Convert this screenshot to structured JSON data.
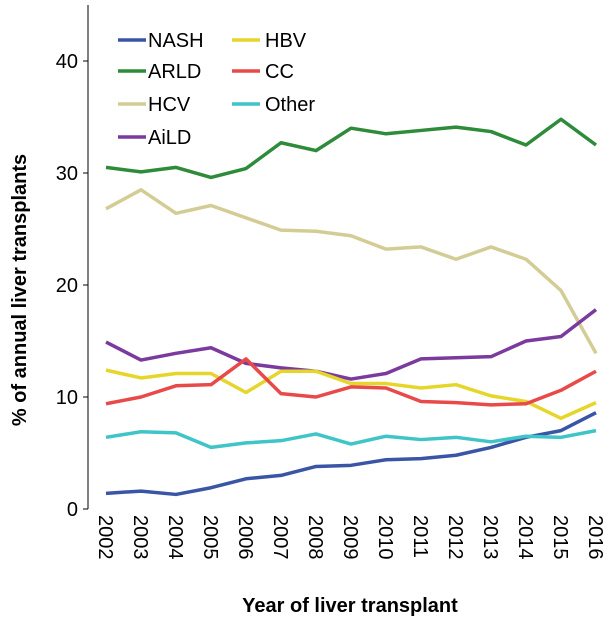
{
  "chart_data": {
    "type": "line",
    "x_label": "Year of liver transplant",
    "y_label": "% of annual liver transplants",
    "categories": [
      "2002",
      "2003",
      "2004",
      "2005",
      "2006",
      "2007",
      "2008",
      "2009",
      "2010",
      "2011",
      "2012",
      "2013",
      "2014",
      "2015",
      "2016"
    ],
    "ylim": [
      0,
      45
    ],
    "yticks": [
      0,
      10,
      20,
      30,
      40
    ],
    "series": [
      {
        "name": "NASH",
        "color": "#3a55a6",
        "values": [
          1.4,
          1.6,
          1.3,
          1.9,
          2.7,
          3.0,
          3.8,
          3.9,
          4.4,
          4.5,
          4.8,
          5.5,
          6.4,
          7.0,
          8.6
        ]
      },
      {
        "name": "ARLD",
        "color": "#2e8b3a",
        "values": [
          30.5,
          30.1,
          30.5,
          29.6,
          30.4,
          32.7,
          32.0,
          34.0,
          33.5,
          33.8,
          34.1,
          33.7,
          32.5,
          34.8,
          32.5
        ]
      },
      {
        "name": "HCV",
        "color": "#d4cc95",
        "values": [
          26.8,
          28.5,
          26.4,
          27.1,
          26.0,
          24.9,
          24.8,
          24.4,
          23.2,
          23.4,
          22.3,
          23.4,
          22.3,
          19.5,
          13.9
        ]
      },
      {
        "name": "AiLD",
        "color": "#7b3a9e",
        "values": [
          14.9,
          13.3,
          13.9,
          14.4,
          13.0,
          12.6,
          12.3,
          11.6,
          12.1,
          13.4,
          13.5,
          13.6,
          15.0,
          15.4,
          17.8
        ]
      },
      {
        "name": "HBV",
        "color": "#e6d62a",
        "values": [
          12.4,
          11.7,
          12.1,
          12.1,
          10.4,
          12.3,
          12.3,
          11.2,
          11.2,
          10.8,
          11.1,
          10.1,
          9.6,
          8.1,
          9.5
        ]
      },
      {
        "name": "CC",
        "color": "#e84a4a",
        "values": [
          9.4,
          10.0,
          11.0,
          11.1,
          13.4,
          10.3,
          10.0,
          10.9,
          10.8,
          9.6,
          9.5,
          9.3,
          9.4,
          10.6,
          12.3
        ]
      },
      {
        "name": "Other",
        "color": "#3fc4c8",
        "values": [
          6.4,
          6.9,
          6.8,
          5.5,
          5.9,
          6.1,
          6.7,
          5.8,
          6.5,
          6.2,
          6.4,
          6.0,
          6.5,
          6.4,
          7.0
        ]
      }
    ]
  }
}
